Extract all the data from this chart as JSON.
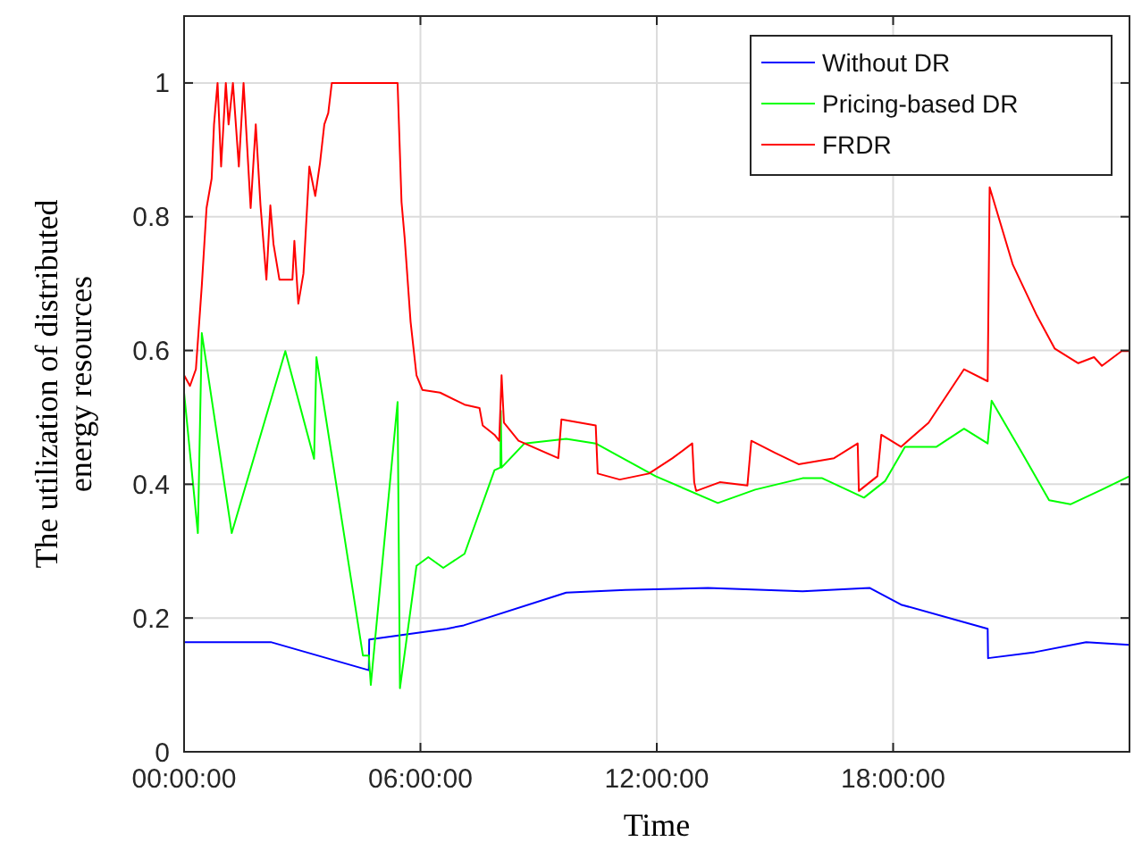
{
  "chart_data": {
    "type": "line",
    "xlabel": "Time",
    "ylabel": "The utilization of distributed energy resources",
    "xlim": [
      0,
      24
    ],
    "xticks": [
      {
        "value": 0,
        "label": "00:00:00"
      },
      {
        "value": 6,
        "label": "06:00:00"
      },
      {
        "value": 12,
        "label": "12:00:00"
      },
      {
        "value": 18,
        "label": "18:00:00"
      }
    ],
    "ylim": [
      0,
      1.1
    ],
    "yticks": [
      0,
      0.2,
      0.4,
      0.6,
      0.8,
      1
    ],
    "grid": true,
    "legend": "top right",
    "line_style": "solid",
    "marker": "none",
    "series": [
      {
        "name": "Without DR",
        "color": "#0000ff",
        "x": [
          0,
          2.2,
          4.69,
          4.7,
          6.67,
          7.1,
          9.7,
          11.2,
          13.3,
          15.7,
          17.4,
          18.2,
          20.4,
          20.41,
          21.6,
          22.9,
          24
        ],
        "values": [
          0.164,
          0.164,
          0.122,
          0.168,
          0.184,
          0.189,
          0.238,
          0.242,
          0.245,
          0.24,
          0.245,
          0.22,
          0.184,
          0.14,
          0.149,
          0.164,
          0.16
        ]
      },
      {
        "name": "Pricing-based DR",
        "color": "#00ff00",
        "x": [
          0,
          0.35,
          0.45,
          1.21,
          2.57,
          3.3,
          3.36,
          4.54,
          4.69,
          4.74,
          5.42,
          5.48,
          5.9,
          6.2,
          6.58,
          7.12,
          7.88,
          8.03,
          8.04,
          8.06,
          8.64,
          9.7,
          10.45,
          11.97,
          13.55,
          14.5,
          15.7,
          16.2,
          17.26,
          17.8,
          18.3,
          19.1,
          19.8,
          20.4,
          20.5,
          21.35,
          21.96,
          22.5,
          23.3,
          24
        ],
        "values": [
          0.537,
          0.327,
          0.626,
          0.327,
          0.599,
          0.438,
          0.59,
          0.144,
          0.144,
          0.1,
          0.523,
          0.095,
          0.278,
          0.291,
          0.275,
          0.296,
          0.421,
          0.425,
          0.51,
          0.425,
          0.461,
          0.468,
          0.461,
          0.412,
          0.372,
          0.392,
          0.409,
          0.409,
          0.38,
          0.405,
          0.456,
          0.456,
          0.483,
          0.461,
          0.525,
          0.439,
          0.376,
          0.37,
          0.392,
          0.412
        ]
      },
      {
        "name": "FRDR",
        "color": "#ff0000",
        "x": [
          0,
          0.15,
          0.3,
          0.45,
          0.57,
          0.7,
          0.76,
          0.85,
          0.94,
          1.06,
          1.13,
          1.24,
          1.39,
          1.51,
          1.69,
          1.82,
          1.94,
          2.09,
          2.19,
          2.27,
          2.42,
          2.75,
          2.8,
          2.9,
          3.03,
          3.18,
          3.33,
          3.45,
          3.56,
          3.66,
          3.75,
          5.42,
          5.52,
          5.6,
          5.75,
          5.9,
          6.05,
          6.5,
          7.12,
          7.5,
          7.58,
          7.88,
          8.0,
          8.06,
          8.12,
          8.49,
          9.5,
          9.58,
          10.45,
          10.5,
          11.06,
          11.8,
          12.4,
          12.9,
          12.95,
          13.0,
          13.6,
          14.3,
          14.4,
          15.0,
          15.6,
          16.5,
          17.1,
          17.13,
          17.6,
          17.7,
          18.2,
          18.9,
          19.8,
          20.4,
          20.45,
          21.04,
          21.65,
          22.1,
          22.7,
          23.1,
          23.3,
          23.8,
          24
        ],
        "values": [
          0.563,
          0.547,
          0.572,
          0.697,
          0.813,
          0.857,
          0.938,
          1,
          0.875,
          1,
          0.938,
          1,
          0.875,
          1,
          0.813,
          0.938,
          0.817,
          0.706,
          0.817,
          0.759,
          0.706,
          0.706,
          0.764,
          0.67,
          0.715,
          0.875,
          0.831,
          0.88,
          0.938,
          0.955,
          1,
          1,
          0.822,
          0.768,
          0.643,
          0.563,
          0.541,
          0.537,
          0.519,
          0.514,
          0.488,
          0.474,
          0.465,
          0.563,
          0.492,
          0.465,
          0.439,
          0.497,
          0.488,
          0.416,
          0.407,
          0.416,
          0.439,
          0.461,
          0.403,
          0.39,
          0.403,
          0.398,
          0.465,
          0.447,
          0.43,
          0.439,
          0.461,
          0.39,
          0.412,
          0.474,
          0.456,
          0.492,
          0.572,
          0.554,
          0.844,
          0.728,
          0.652,
          0.603,
          0.581,
          0.59,
          0.577,
          0.599,
          0.599
        ]
      }
    ]
  }
}
